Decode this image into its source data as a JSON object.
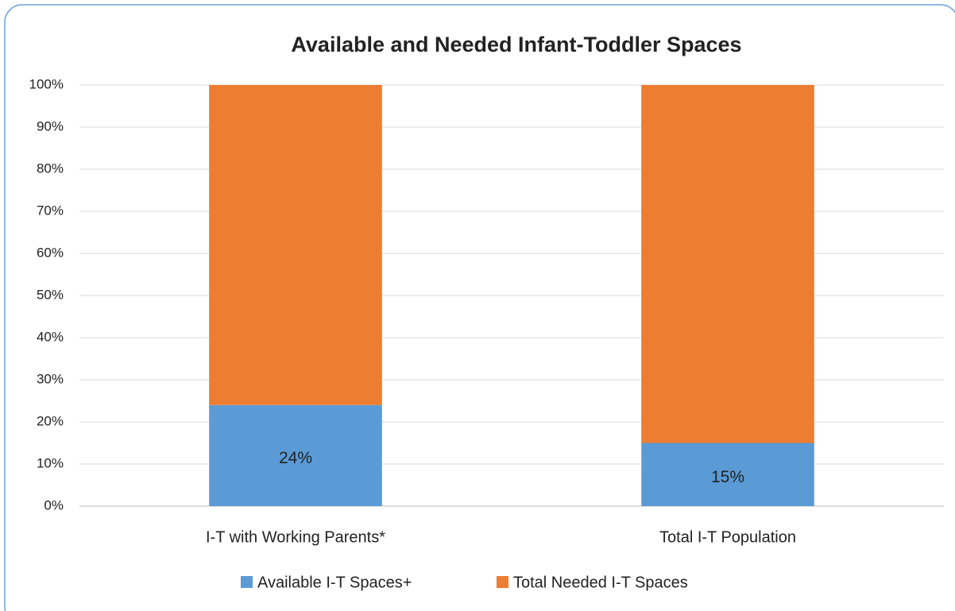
{
  "chart_data": {
    "type": "stacked_bar",
    "title": "Available and Needed Infant-Toddler Spaces",
    "categories": [
      "I-T with Working Parents*",
      "Total I-T Population"
    ],
    "series": [
      {
        "name": "Available I-T Spaces+",
        "color": "#5b9bd5",
        "values": [
          24,
          15
        ],
        "value_labels": [
          "24%",
          "15%"
        ]
      },
      {
        "name": "Total Needed I-T Spaces",
        "color": "#ed7d31",
        "values": [
          76,
          85
        ]
      }
    ],
    "ylim": [
      0,
      100
    ],
    "yticks": [
      {
        "value": 0,
        "label": "0%"
      },
      {
        "value": 10,
        "label": "10%"
      },
      {
        "value": 20,
        "label": "20%"
      },
      {
        "value": 30,
        "label": "30%"
      },
      {
        "value": 40,
        "label": "40%"
      },
      {
        "value": 50,
        "label": "50%"
      },
      {
        "value": 60,
        "label": "60%"
      },
      {
        "value": 70,
        "label": "70%"
      },
      {
        "value": 80,
        "label": "80%"
      },
      {
        "value": 90,
        "label": "90%"
      },
      {
        "value": 100,
        "label": "100%"
      }
    ],
    "grid": true,
    "legend": "bottom"
  }
}
